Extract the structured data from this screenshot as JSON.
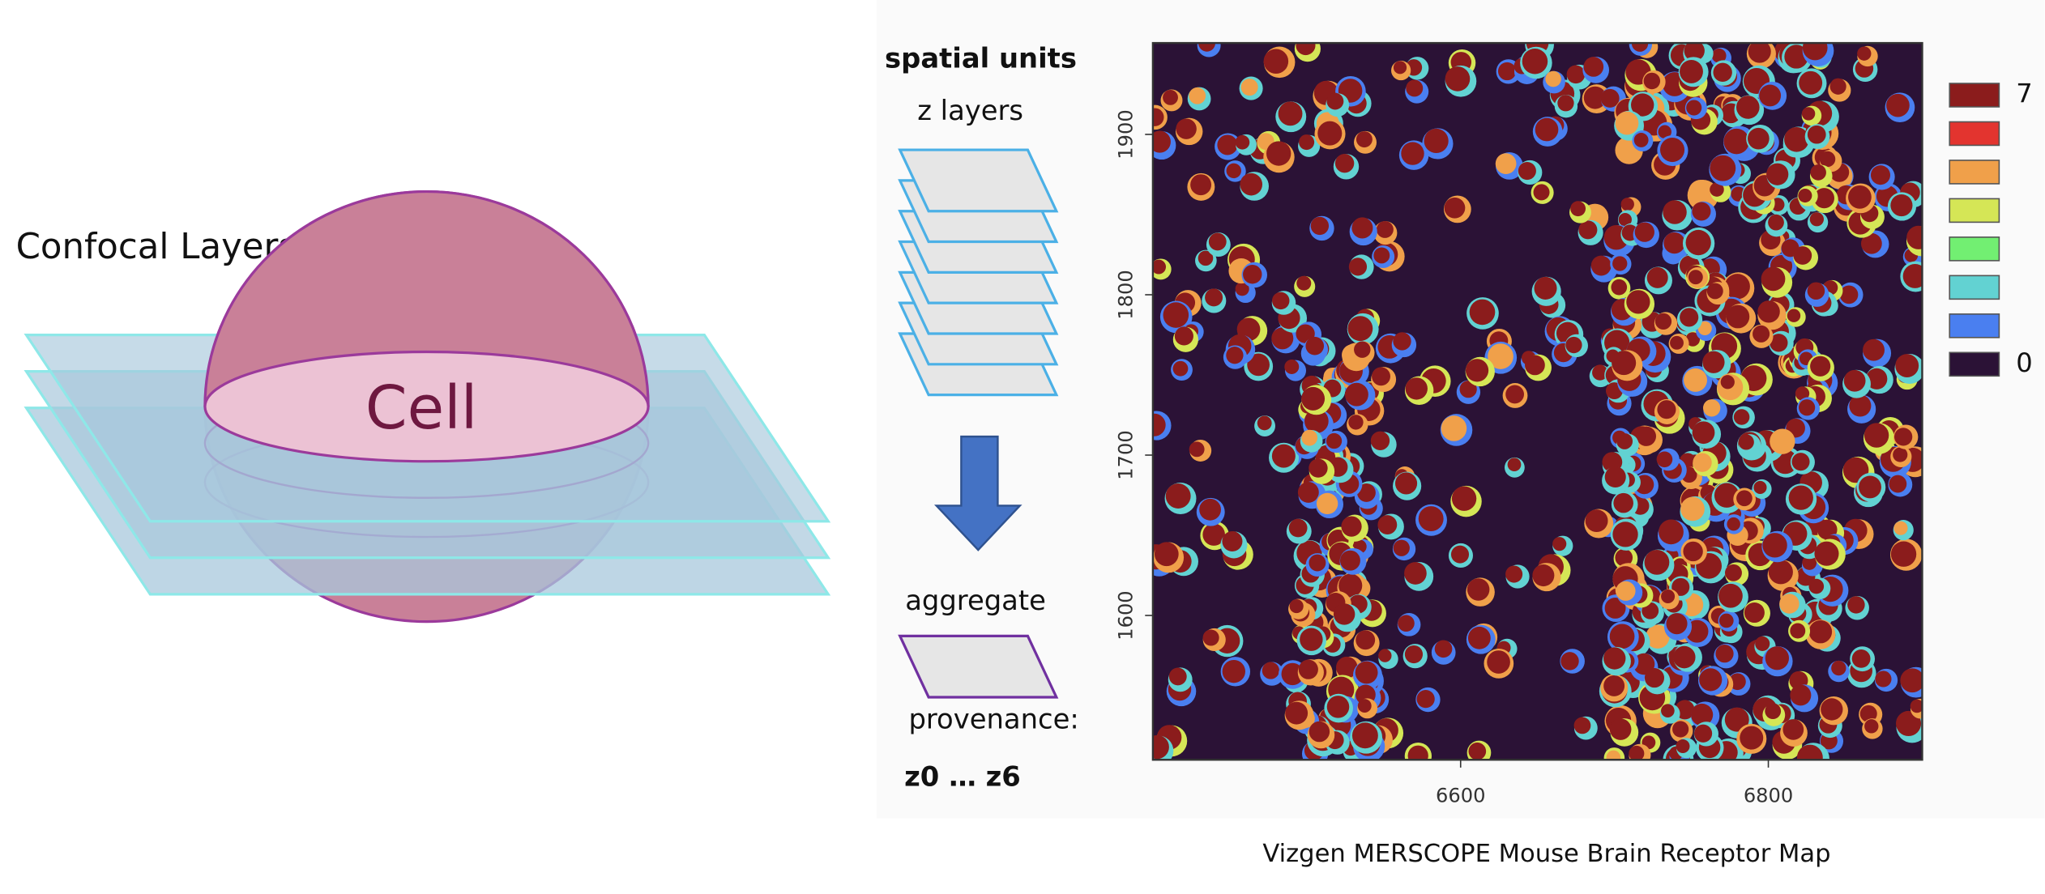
{
  "left_panel": {
    "title": "Confocal Layers",
    "cell_label": "Cell"
  },
  "middle_panel": {
    "heading": "spatial units",
    "layers_label": "z layers",
    "aggregate_label": "aggregate",
    "provenance_label": "provenance:",
    "provenance_range": "z0 … z6"
  },
  "chart_data": {
    "type": "heatmap",
    "caption": "Vizgen MERSCOPE Mouse Brain Receptor Map",
    "xlim": [
      6400,
      6900
    ],
    "xticks": [
      6600,
      6800
    ],
    "ylim": [
      1510,
      1957
    ],
    "yticks": [
      1600,
      1700,
      1800,
      1900
    ],
    "colorscale": [
      "#8b1c1c",
      "#e3342f",
      "#f0a04a",
      "#d5e656",
      "#72ef72",
      "#62d2d2",
      "#4a7ff0",
      "#2b1236"
    ],
    "colorbar_ticks": [
      7,
      0
    ]
  }
}
